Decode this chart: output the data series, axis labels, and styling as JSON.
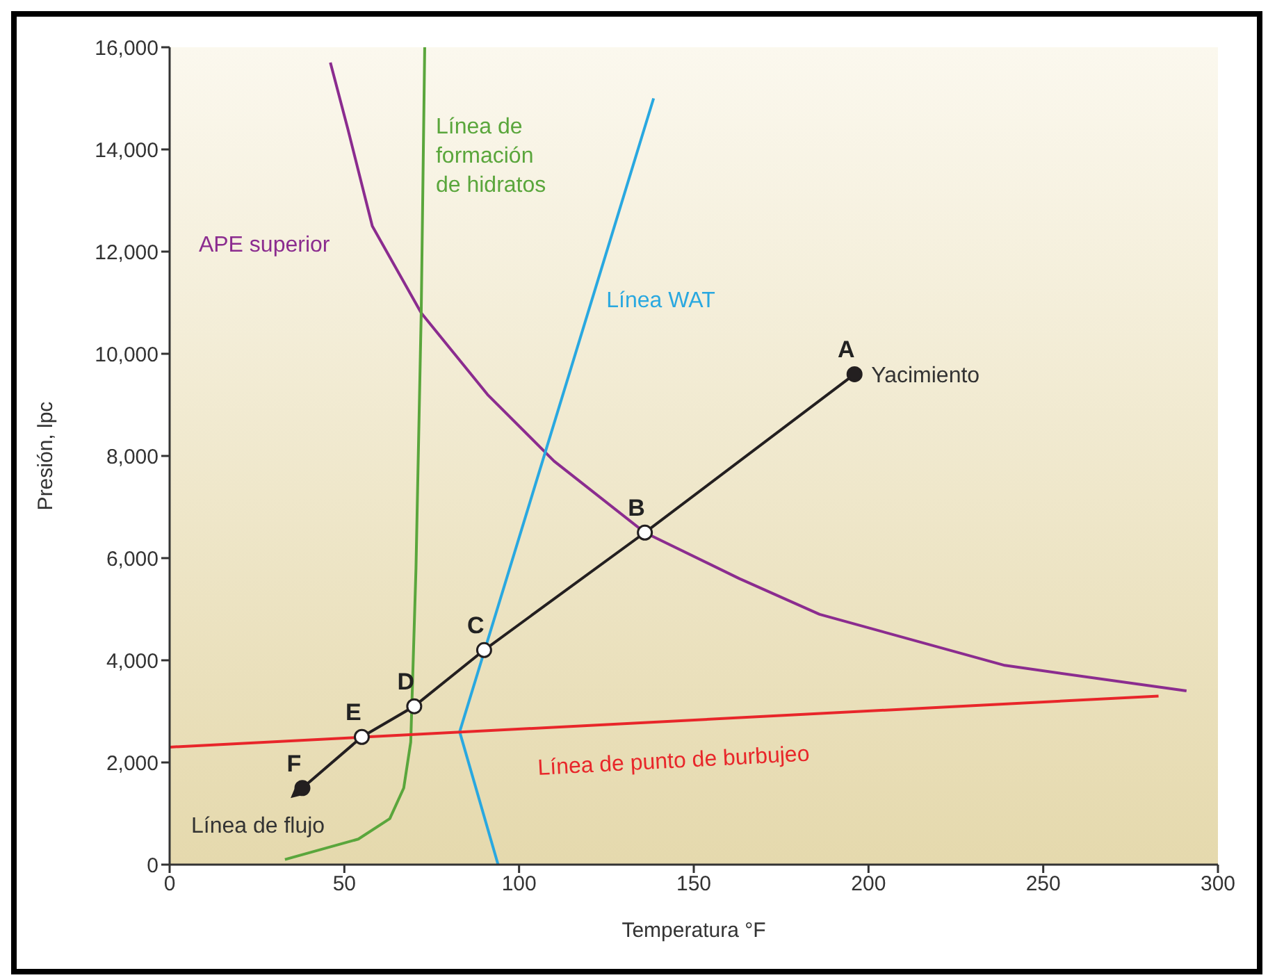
{
  "chart_data": {
    "type": "line",
    "xlabel": "Temperatura °F",
    "ylabel": "Presión, lpc",
    "xlim": [
      0,
      300
    ],
    "xticks": [
      0,
      50,
      100,
      150,
      200,
      250,
      300
    ],
    "ylim": [
      0,
      16000
    ],
    "yticks": [
      0,
      {
        "value": 2000,
        "label": "2,000"
      },
      {
        "value": 4000,
        "label": "4,000"
      },
      {
        "value": 6000,
        "label": "6,000"
      },
      {
        "value": 8000,
        "label": "8,000"
      },
      {
        "value": 10000,
        "label": "10,000"
      },
      {
        "value": 12000,
        "label": "12,000"
      },
      {
        "value": 14000,
        "label": "14,000"
      },
      {
        "value": 16000,
        "label": "16,000"
      }
    ],
    "grid": false,
    "line_style": "solid",
    "series": [
      {
        "name": "APE superior",
        "color": "#8b2c8f",
        "marker": "none",
        "x": [
          46,
          51,
          58,
          72,
          91,
          110,
          136,
          163,
          186,
          239,
          291
        ],
        "values": [
          15700,
          14400,
          12500,
          10800,
          9200,
          7900,
          6500,
          5600,
          4900,
          3900,
          3400
        ]
      },
      {
        "name": "Línea de formación de hidratos",
        "color": "#5aa63c",
        "marker": "none",
        "x": [
          33,
          54,
          63,
          67,
          69,
          70.5,
          72,
          73
        ],
        "values": [
          100,
          500,
          900,
          1500,
          2400,
          5800,
          10800,
          16000
        ]
      },
      {
        "name": "Línea WAT",
        "color": "#29a8e0",
        "marker": "none",
        "x": [
          94,
          83,
          138.5
        ],
        "values": [
          0,
          2600,
          15000
        ]
      },
      {
        "name": "Línea de punto de burbujeo",
        "color": "#e8262a",
        "marker": "none",
        "x": [
          0,
          283
        ],
        "values": [
          2300,
          3300
        ]
      },
      {
        "color": "#231f20",
        "marker": "circle",
        "colors": [
          "#231f20",
          "#ffffff",
          "#ffffff",
          "#ffffff",
          "#ffffff",
          "#231f20"
        ],
        "x": [
          196,
          136,
          90,
          70,
          55,
          38
        ],
        "values": [
          9600,
          6500,
          4200,
          3100,
          2500,
          1500
        ],
        "value_labels": [
          "A",
          "B",
          "C",
          "D",
          "E",
          "F"
        ]
      }
    ],
    "annotations": [
      {
        "text": "Yacimiento",
        "x": 196,
        "y": 9600
      },
      {
        "text": "Línea de flujo",
        "x": 38,
        "y": 1500
      }
    ]
  }
}
